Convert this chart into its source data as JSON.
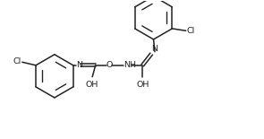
{
  "bg_color": "#ffffff",
  "line_color": "#222222",
  "line_width": 1.1,
  "font_size": 6.8,
  "fig_width": 2.95,
  "fig_height": 1.55,
  "dpi": 100,
  "xlim": [
    0,
    10
  ],
  "ylim": [
    0,
    5.2
  ]
}
